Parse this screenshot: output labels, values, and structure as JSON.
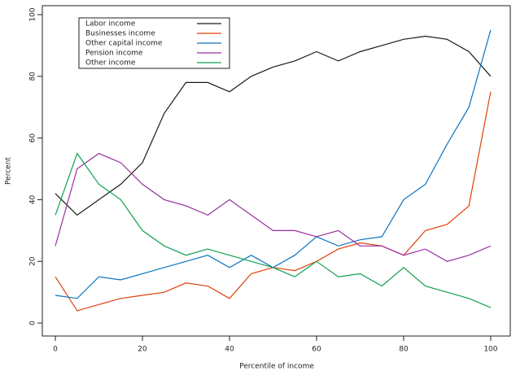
{
  "chart_data": {
    "type": "line",
    "xlabel": "Percentile of income",
    "ylabel": "Percent",
    "x": [
      0,
      5,
      10,
      15,
      20,
      25,
      30,
      35,
      40,
      45,
      50,
      55,
      60,
      65,
      70,
      75,
      80,
      85,
      90,
      95,
      100
    ],
    "series": [
      {
        "name": "Labor income",
        "color": "#1a1a1a",
        "values": [
          42,
          35,
          40,
          45,
          52,
          68,
          78,
          78,
          75,
          80,
          83,
          85,
          88,
          85,
          88,
          90,
          92,
          93,
          92,
          88,
          80
        ]
      },
      {
        "name": "Businesses income",
        "color": "#e0400a",
        "values": [
          15,
          4,
          6,
          8,
          9,
          10,
          13,
          12,
          8,
          16,
          18,
          17,
          20,
          24,
          26,
          25,
          22,
          30,
          32,
          38,
          75
        ]
      },
      {
        "name": "Other capital income",
        "color": "#0a74c0",
        "values": [
          9,
          8,
          15,
          14,
          16,
          18,
          20,
          22,
          18,
          22,
          18,
          22,
          28,
          25,
          27,
          28,
          40,
          45,
          58,
          70,
          95
        ]
      },
      {
        "name": "Pension income",
        "color": "#9a30a0",
        "values": [
          25,
          50,
          55,
          52,
          45,
          40,
          38,
          35,
          40,
          35,
          30,
          30,
          28,
          30,
          25,
          25,
          22,
          24,
          20,
          22,
          25
        ]
      },
      {
        "name": "Other income",
        "color": "#10a050",
        "values": [
          35,
          55,
          45,
          40,
          30,
          25,
          22,
          24,
          22,
          20,
          18,
          15,
          20,
          15,
          16,
          12,
          18,
          12,
          10,
          8,
          5
        ]
      }
    ],
    "xlim": [
      -3,
      104.5
    ],
    "ylim": [
      -4.2,
      102.9
    ],
    "xticks": [
      0,
      20,
      40,
      60,
      80,
      100
    ],
    "yticks": [
      0,
      20,
      40,
      60,
      80,
      100
    ],
    "legend": "top-left"
  }
}
